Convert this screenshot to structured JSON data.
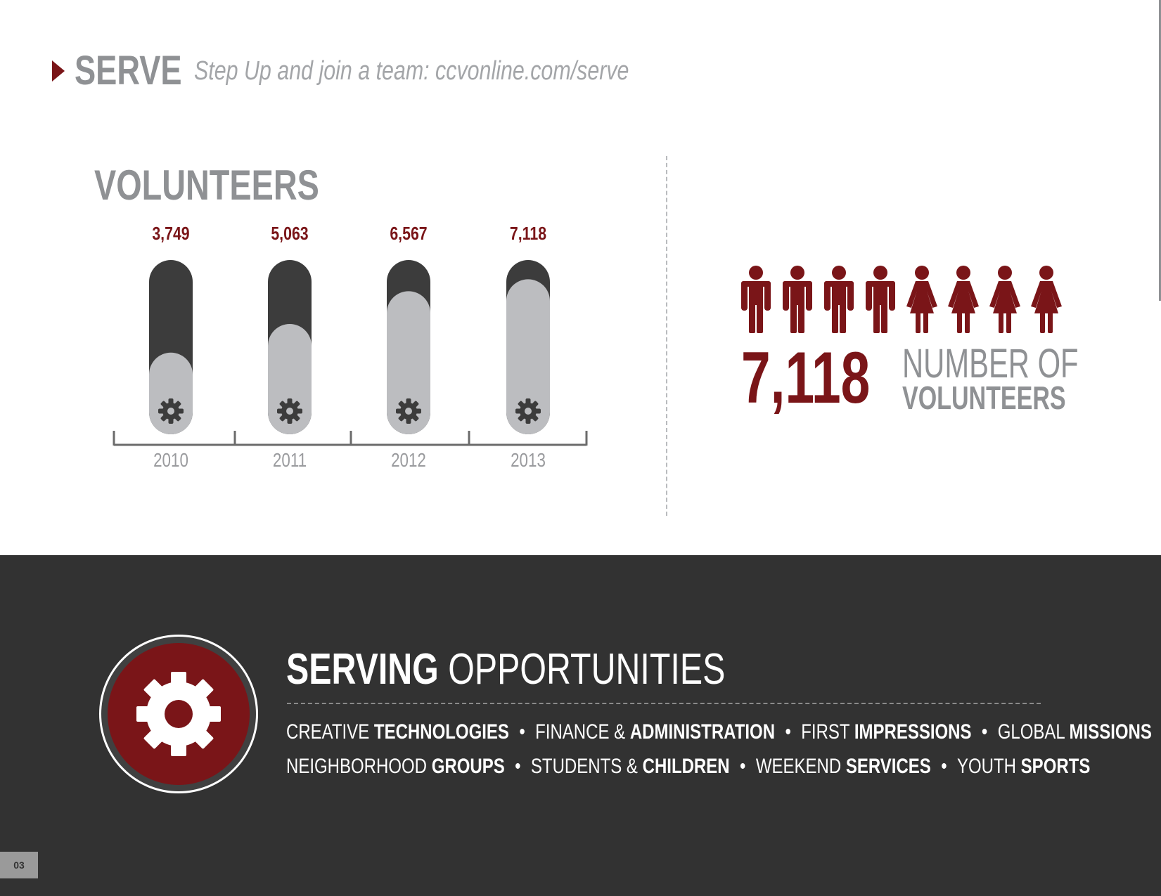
{
  "header": {
    "title": "SERVE",
    "subtitle": "Step Up and join a team: ccvonline.com/serve"
  },
  "chart_data": {
    "type": "bar",
    "title": "VOLUNTEERS",
    "categories": [
      "2010",
      "2011",
      "2012",
      "2013"
    ],
    "values": [
      3749,
      5063,
      6567,
      7118
    ],
    "value_labels": [
      "3,749",
      "5,063",
      "6,567",
      "7,118"
    ],
    "xlabel": "",
    "ylabel": "",
    "colors": {
      "label": "#7a1518",
      "track": "#3c3c3c",
      "fill": "#bcbdc0",
      "gear": "#3c3c3c",
      "axis": "#6b6b6b",
      "tick_label": "#9a9b9e"
    }
  },
  "stat": {
    "number": "7,118",
    "label_line1": "NUMBER OF",
    "label_line2": "VOLUNTEERS",
    "icons": [
      "man-icon",
      "man-icon",
      "man-icon",
      "man-icon",
      "woman-icon",
      "woman-icon",
      "woman-icon",
      "woman-icon"
    ],
    "icon_color": "#7a1518"
  },
  "serving": {
    "title_bold": "SERVING",
    "title_light": "OPPORTUNITIES",
    "lines": [
      [
        {
          "light": "CREATIVE",
          "bold": "TECHNOLOGIES"
        },
        {
          "light": "FINANCE &",
          "bold": "ADMINISTRATION"
        },
        {
          "light": "FIRST",
          "bold": "IMPRESSIONS"
        },
        {
          "light": "GLOBAL",
          "bold": "MISSIONS"
        }
      ],
      [
        {
          "light": "NEIGHBORHOOD",
          "bold": "GROUPS"
        },
        {
          "light": "STUDENTS &",
          "bold": "CHILDREN"
        },
        {
          "light": "WEEKEND",
          "bold": "SERVICES"
        },
        {
          "light": "YOUTH",
          "bold": "SPORTS"
        }
      ]
    ],
    "bullet": "•"
  },
  "page_number": "03",
  "colors": {
    "accent": "#7a1518",
    "gray_text": "#8f9194",
    "band": "#323232"
  }
}
